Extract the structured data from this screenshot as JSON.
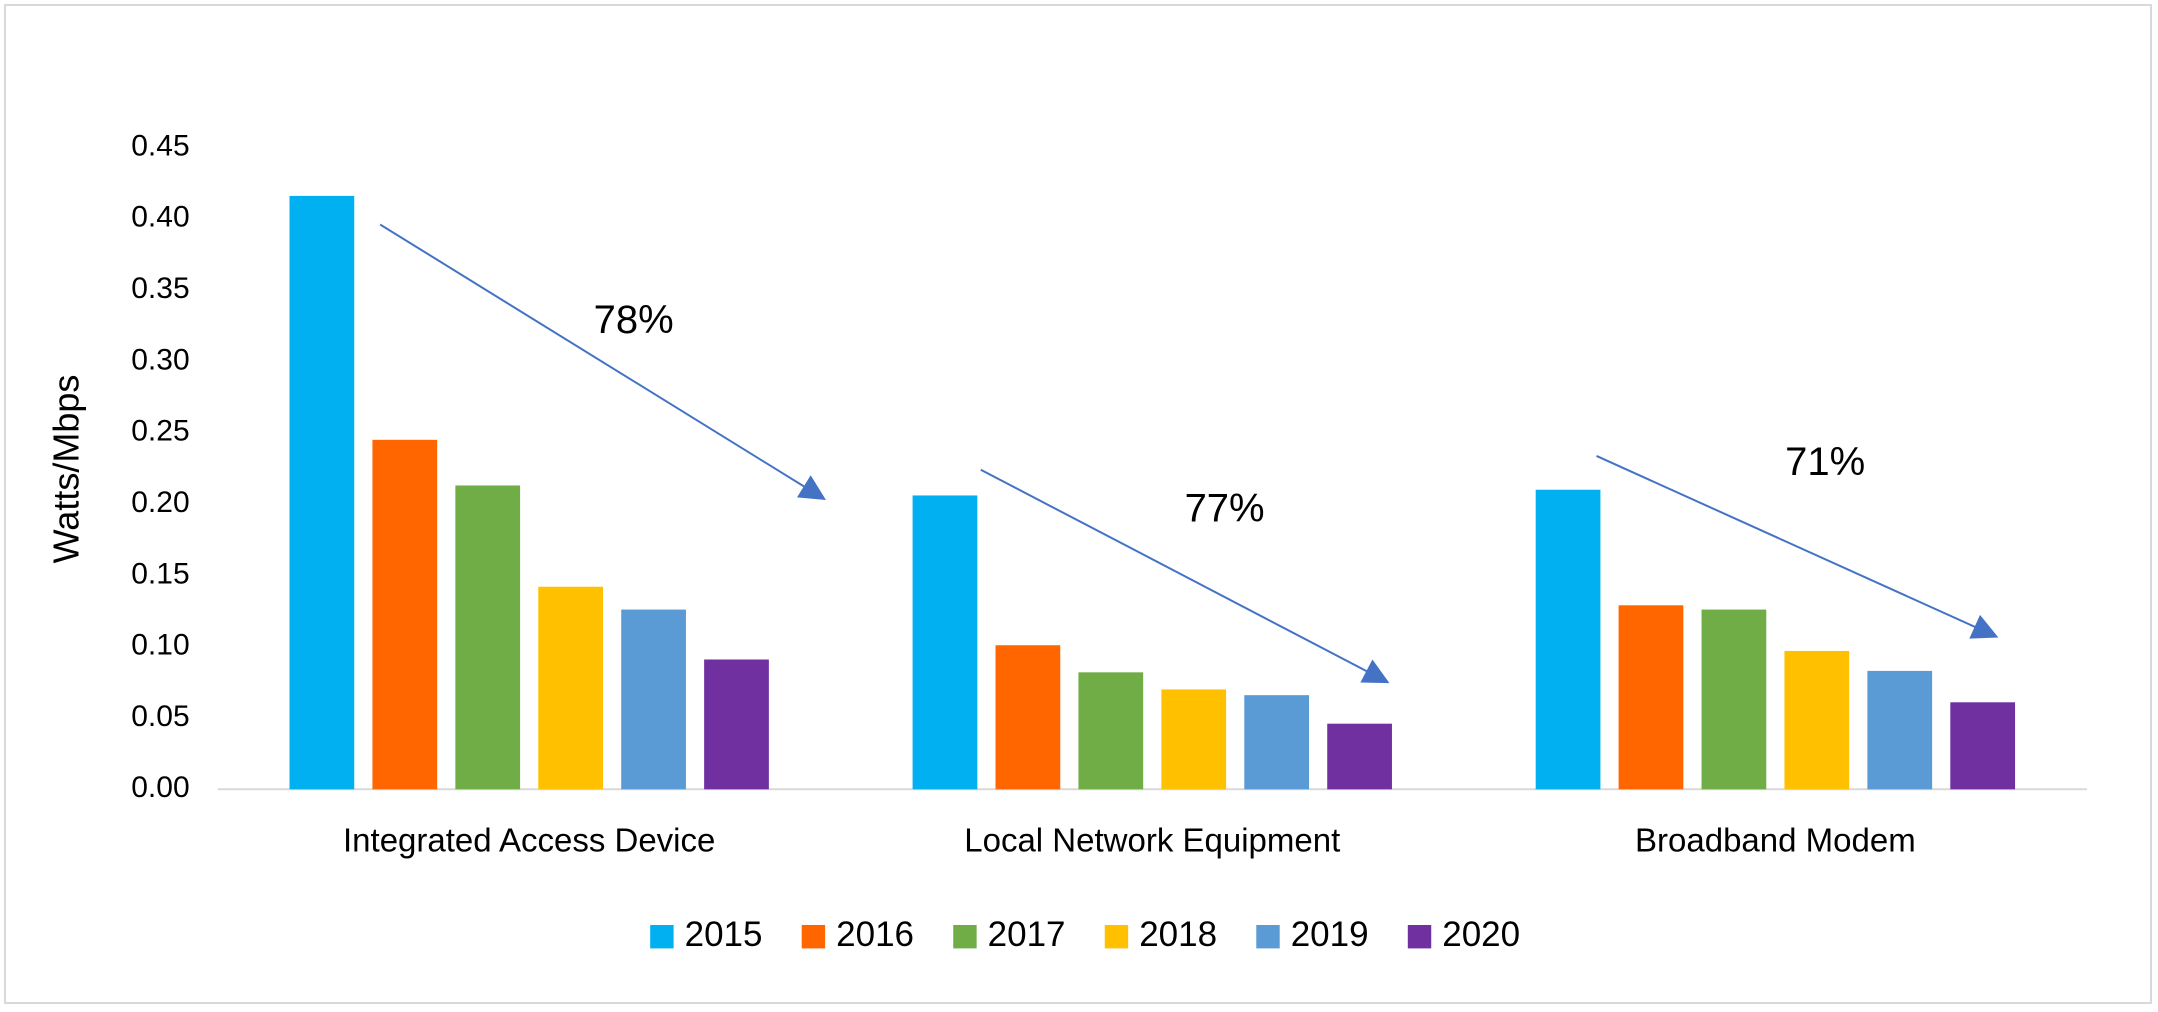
{
  "chart_data": {
    "type": "bar",
    "y_label": "Watts/Mbps",
    "categories": [
      "Integrated Access Device",
      "Local Network Equipment",
      "Broadband Modem"
    ],
    "series": [
      {
        "name": "2015",
        "color": "#00b0f0",
        "values": [
          0.416,
          0.206,
          0.21
        ]
      },
      {
        "name": "2016",
        "color": "#ff6600",
        "values": [
          0.245,
          0.101,
          0.129
        ]
      },
      {
        "name": "2017",
        "color": "#70ad47",
        "values": [
          0.213,
          0.082,
          0.126
        ]
      },
      {
        "name": "2018",
        "color": "#ffc000",
        "values": [
          0.142,
          0.07,
          0.097
        ]
      },
      {
        "name": "2019",
        "color": "#5b9bd5",
        "values": [
          0.126,
          0.066,
          0.083
        ]
      },
      {
        "name": "2020",
        "color": "#7030a0",
        "values": [
          0.091,
          0.046,
          0.061
        ]
      }
    ],
    "ylim": [
      0,
      0.45
    ],
    "yticks": [
      {
        "value": 0,
        "label": "0.00"
      },
      0.05,
      {
        "value": 0.1,
        "label": "0.10"
      },
      0.15,
      {
        "value": 0.2,
        "label": "0.20"
      },
      0.25,
      {
        "value": 0.3,
        "label": "0.30"
      },
      0.35,
      {
        "value": 0.4,
        "label": "0.40"
      },
      0.45
    ],
    "annotations": [
      {
        "text": "78%"
      },
      {
        "text": "77%"
      },
      {
        "text": "71%"
      }
    ],
    "legend": "bottom"
  }
}
